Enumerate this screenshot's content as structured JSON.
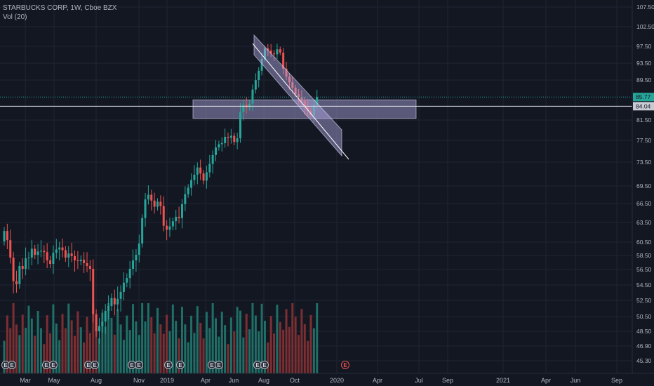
{
  "legend": {
    "symbol_line": "STARBUCKS CORP, 1W, Cboe BZX",
    "volume_line": "Vol (20)"
  },
  "colors": {
    "background": "#131722",
    "grid": "#1f2431",
    "up": "#26a69a",
    "down": "#ef5350",
    "volume_up": "#1f6f67",
    "volume_down": "#7c2f33",
    "price_tag": "#26a69a",
    "crosshair_tag": "#c8cbd3",
    "drawing_fill": "rgba(179,170,230,0.45)",
    "drawing_line": "#ffffff"
  },
  "chart_data": {
    "type": "candlestick",
    "price_axis_ticks": [
      "107.50",
      "102.50",
      "97.50",
      "93.50",
      "89.50",
      "85.77",
      "84.04",
      "81.50",
      "77.50",
      "73.50",
      "69.50",
      "66.50",
      "63.50",
      "60.50",
      "58.50",
      "56.50",
      "54.50",
      "52.50",
      "50.50",
      "48.50",
      "46.90",
      "45.30"
    ],
    "time_axis_ticks": [
      "Mar",
      "May",
      "Aug",
      "Nov",
      "2019",
      "Apr",
      "Jun",
      "Aug",
      "Oct",
      "2020",
      "Apr",
      "Jul",
      "Sep",
      "2021",
      "Apr",
      "Jun",
      "Sep"
    ],
    "last_price": 85.77,
    "crosshair_price": 84.04,
    "earnings_marker_label": "E",
    "earnings_count": 14,
    "future_earnings_count": 1,
    "candles_close": [
      62.2,
      60.8,
      58.2,
      55.0,
      54.6,
      57.0,
      56.6,
      58.1,
      58.2,
      59.5,
      58.6,
      59.1,
      59.2,
      59.0,
      57.8,
      57.3,
      58.9,
      59.4,
      59.7,
      59.3,
      58.2,
      58.8,
      58.4,
      57.8,
      57.7,
      57.9,
      57.4,
      57.0,
      56.6,
      50.8,
      48.5,
      49.2,
      49.8,
      51.2,
      51.8,
      52.8,
      52.0,
      52.7,
      53.6,
      54.8,
      55.4,
      56.6,
      57.8,
      58.6,
      60.3,
      64.2,
      67.2,
      68.0,
      67.0,
      66.0,
      66.8,
      66.1,
      63.0,
      62.4,
      62.9,
      63.7,
      64.4,
      64.2,
      66.4,
      68.1,
      69.2,
      70.5,
      71.4,
      72.6,
      71.6,
      70.4,
      71.8,
      73.2,
      74.8,
      76.2,
      76.8,
      77.0,
      78.2,
      78.0,
      78.4,
      77.2,
      77.9,
      83.0,
      84.3,
      83.8,
      84.5,
      87.4,
      89.5,
      91.7,
      94.5,
      97.0,
      96.5,
      95.8,
      95.6,
      96.8,
      96.0,
      92.2,
      90.3,
      89.0,
      87.8,
      86.4,
      85.7,
      85.0,
      84.0,
      83.2,
      82.4,
      84.2,
      85.77
    ],
    "candles_open": [
      60.6,
      62.2,
      60.8,
      58.2,
      55.0,
      54.6,
      57.0,
      56.6,
      58.1,
      58.2,
      59.5,
      58.6,
      59.1,
      59.2,
      59.0,
      57.8,
      57.3,
      58.9,
      59.4,
      59.7,
      59.3,
      58.2,
      58.8,
      58.4,
      57.8,
      57.7,
      57.9,
      57.4,
      57.0,
      56.6,
      50.8,
      48.5,
      49.2,
      49.8,
      51.2,
      51.8,
      52.8,
      52.0,
      52.7,
      53.6,
      54.8,
      55.4,
      56.6,
      57.8,
      58.6,
      60.3,
      64.2,
      67.2,
      68.0,
      67.0,
      66.0,
      66.8,
      66.1,
      63.0,
      62.4,
      62.9,
      63.7,
      64.4,
      64.2,
      66.4,
      68.1,
      69.2,
      70.5,
      71.4,
      72.6,
      71.6,
      70.4,
      71.8,
      73.2,
      74.8,
      76.2,
      76.8,
      77.0,
      78.2,
      78.0,
      78.4,
      77.2,
      77.9,
      83.0,
      84.3,
      83.8,
      84.5,
      87.4,
      89.5,
      91.7,
      94.5,
      97.0,
      96.5,
      95.8,
      95.6,
      96.8,
      96.0,
      92.2,
      90.3,
      89.0,
      87.8,
      86.4,
      85.7,
      85.0,
      84.0,
      83.2,
      82.4,
      84.2
    ]
  }
}
